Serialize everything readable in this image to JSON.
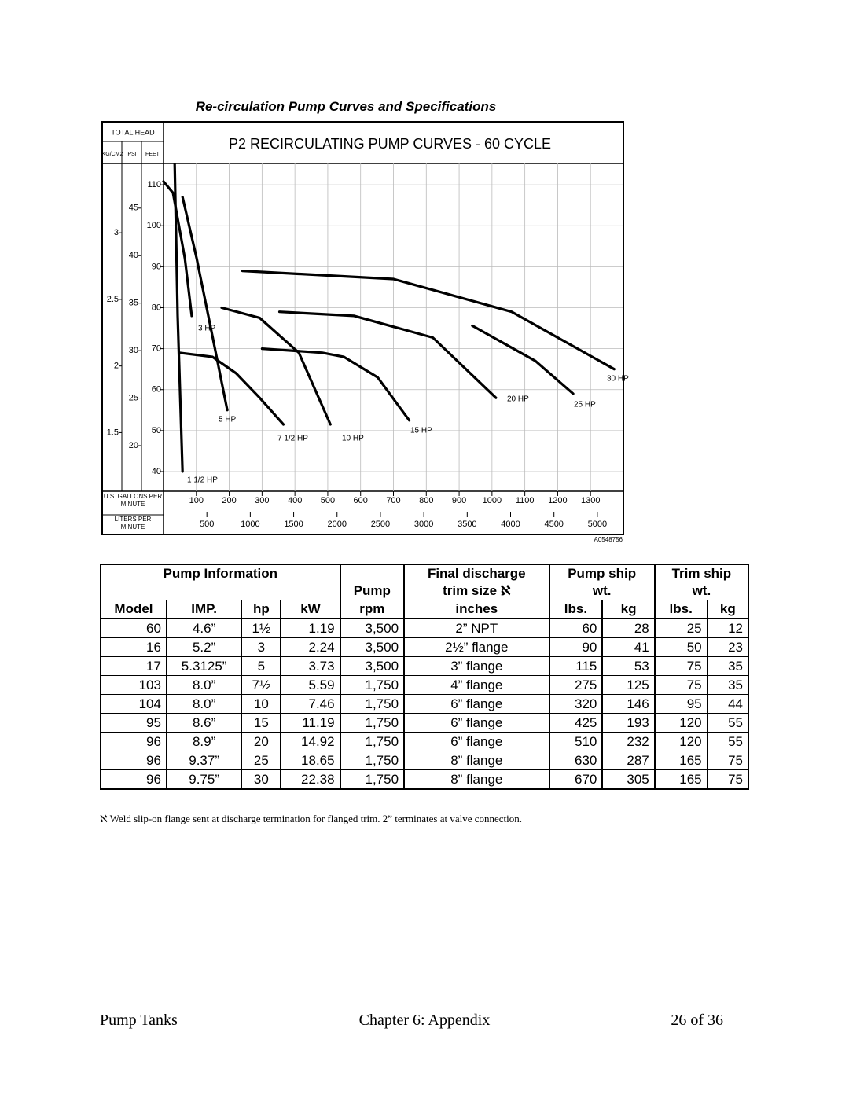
{
  "section_title": "Re-circulation Pump Curves and Specifications",
  "chart_data": {
    "type": "line",
    "title": "P2 RECIRCULATING PUMP CURVES - 60 CYCLE",
    "y_header": "TOTAL HEAD",
    "y_label": "FEET",
    "y2_label": "PSI",
    "y3_label": "KG/CM2",
    "x_label": "U.S. GALLONS PER MINUTE",
    "x2_label": "LITERS PER MINUTE",
    "code": "A0548756",
    "xlim": [
      0,
      1400
    ],
    "xticks": [
      100,
      200,
      300,
      400,
      500,
      600,
      700,
      800,
      900,
      1000,
      1100,
      1200,
      1300
    ],
    "x2lim": [
      0,
      5300
    ],
    "x2ticks": [
      500,
      1000,
      1500,
      2000,
      2500,
      3000,
      3500,
      4000,
      4500,
      5000
    ],
    "ylim": [
      35.2,
      115.2
    ],
    "yticks": [
      40,
      50,
      60,
      70,
      80,
      90,
      100,
      110
    ],
    "y2lim": [
      15.2,
      49.7
    ],
    "y2ticks": [
      20,
      25,
      30,
      35,
      40,
      45
    ],
    "y3lim": [
      1.06,
      3.52
    ],
    "y3ticks": [
      1.5,
      2,
      2.5,
      3
    ],
    "grid": true,
    "series": [
      {
        "name": "1 1/2 HP",
        "color": "#000000",
        "x": [
          34,
          43,
          58
        ],
        "values": [
          115,
          78,
          40
        ]
      },
      {
        "name": "3 HP",
        "color": "#000000",
        "x": [
          0,
          29,
          65,
          86
        ],
        "values": [
          110.8,
          108,
          92,
          78
        ]
      },
      {
        "name": "5 HP",
        "color": "#000000",
        "x": [
          58,
          101,
          149,
          194
        ],
        "values": [
          107,
          92,
          73,
          55
        ]
      },
      {
        "name": "7 1/2 HP",
        "color": "#000000",
        "x": [
          48,
          149,
          221,
          293,
          365
        ],
        "values": [
          69,
          68,
          64,
          58,
          51.5
        ]
      },
      {
        "name": "10 HP",
        "color": "#000000",
        "x": [
          177,
          293,
          412,
          508
        ],
        "values": [
          80,
          77.5,
          69,
          51.5
        ]
      },
      {
        "name": "15 HP",
        "color": "#000000",
        "x": [
          300,
          484,
          549,
          652,
          748
        ],
        "values": [
          70,
          69,
          68,
          63,
          52.5
        ]
      },
      {
        "name": "20 HP",
        "color": "#000000",
        "x": [
          353,
          580,
          820,
          1012
        ],
        "values": [
          79,
          78,
          72.7,
          58
        ]
      },
      {
        "name": "25 HP",
        "color": "#000000",
        "x": [
          940,
          1132,
          1247
        ],
        "values": [
          75.6,
          67,
          59
        ]
      },
      {
        "name": "30 HP",
        "color": "#000000",
        "x": [
          240,
          700,
          1060,
          1372
        ],
        "values": [
          89,
          87,
          79,
          65
        ]
      }
    ]
  },
  "table": {
    "header": {
      "pump_info": "Pump Information",
      "pump": "Pump",
      "final_discharge": "Final discharge",
      "trim_size": "trim size ℵ",
      "pump_ship": "Pump ship",
      "pump_ship_wt": "wt.",
      "trim_ship": "Trim ship",
      "trim_ship_wt": "wt."
    },
    "columns": [
      "Model",
      "IMP.",
      "hp",
      "kW",
      "rpm",
      "inches",
      "lbs.",
      "kg",
      "lbs.",
      "kg"
    ],
    "rows": [
      [
        "60",
        "4.6”",
        "1½",
        "1.19",
        "3,500",
        "2” NPT",
        "60",
        "28",
        "25",
        "12"
      ],
      [
        "16",
        "5.2”",
        "3",
        "2.24",
        "3,500",
        "2½” flange",
        "90",
        "41",
        "50",
        "23"
      ],
      [
        "17",
        "5.3125”",
        "5",
        "3.73",
        "3,500",
        "3” flange",
        "115",
        "53",
        "75",
        "35"
      ],
      [
        "103",
        "8.0”",
        "7½",
        "5.59",
        "1,750",
        "4” flange",
        "275",
        "125",
        "75",
        "35"
      ],
      [
        "104",
        "8.0”",
        "10",
        "7.46",
        "1,750",
        "6” flange",
        "320",
        "146",
        "95",
        "44"
      ],
      [
        "95",
        "8.6”",
        "15",
        "11.19",
        "1,750",
        "6” flange",
        "425",
        "193",
        "120",
        "55"
      ],
      [
        "96",
        "8.9”",
        "20",
        "14.92",
        "1,750",
        "6” flange",
        "510",
        "232",
        "120",
        "55"
      ],
      [
        "96",
        "9.37”",
        "25",
        "18.65",
        "1,750",
        "8” flange",
        "630",
        "287",
        "165",
        "75"
      ],
      [
        "96",
        "9.75”",
        "30",
        "22.38",
        "1,750",
        "8” flange",
        "670",
        "305",
        "165",
        "75"
      ]
    ]
  },
  "footnote": "ℵ  Weld slip-on flange sent at discharge termination for flanged trim.  2” terminates at valve connection.",
  "footer": {
    "left": "Pump Tanks",
    "center": "Chapter 6: Appendix",
    "right": "26 of 36"
  }
}
